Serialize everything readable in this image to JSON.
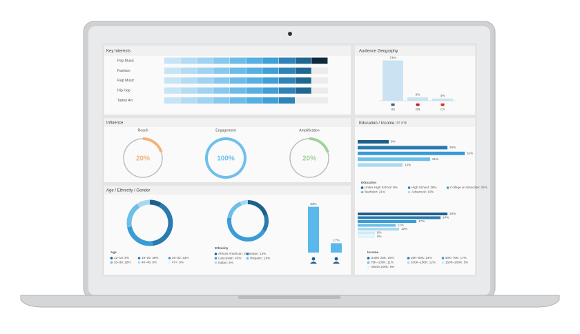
{
  "key_interests": {
    "title": "Key Interests",
    "categories": [
      "Pop Music",
      "Fashion",
      "Rap Music",
      "Hip Hop",
      "Tattoo Art"
    ],
    "values": [
      10,
      9,
      9,
      9,
      8
    ],
    "xlim": [
      0,
      10
    ],
    "colors": [
      "#c6e4f6",
      "#b3dcf4",
      "#9fd3f1",
      "#87c8ee",
      "#6bbbe9",
      "#55afe3",
      "#3f9fd6",
      "#2e84b8",
      "#1f6791",
      "#0f2a3c"
    ]
  },
  "audience_geography": {
    "title": "Audience Geography",
    "categories": [
      "US",
      "GB",
      "CA"
    ],
    "values": [
      73,
      6,
      4
    ],
    "value_labels": [
      "73%",
      "6%",
      "4%"
    ],
    "ylim": [
      0,
      75
    ],
    "color": "#c9e3f3"
  },
  "influence": {
    "title": "Influence",
    "categories": [
      "Reach",
      "Engagement",
      "Amplification"
    ],
    "values": [
      20,
      100,
      20
    ],
    "value_labels": [
      "20%",
      "100%",
      "20%"
    ],
    "colors": [
      "#f5b27a",
      "#6cc0ec",
      "#9fd39a"
    ],
    "ylim": [
      0,
      100
    ]
  },
  "education_income": {
    "title": "Education / Income",
    "subtitle": "US only",
    "xlim": [
      0,
      32
    ],
    "education": {
      "title": "Education",
      "values": [
        9,
        26,
        31,
        21,
        13
      ],
      "value_labels": [
        "9%",
        "26%",
        "31%",
        "21%",
        "13%"
      ],
      "legend": [
        "Under High School: 9%",
        "High School: 26%",
        "College or Associate: 31%",
        "Bachelor: 21%",
        "Advanced: 13%"
      ],
      "colors": [
        "#1f5f8b",
        "#2a7ab0",
        "#3a9bd5",
        "#6cbfe8",
        "#a8d8f0"
      ]
    },
    "income": {
      "title": "Income",
      "values": [
        26,
        24,
        17,
        11,
        12,
        5,
        5
      ],
      "value_labels": [
        "26%",
        "24%",
        "17%",
        "11%",
        "12%",
        "5%",
        "5%"
      ],
      "legend": [
        "Under 25K: 26%",
        "25K–50K: 24%",
        "50K–75K: 17%",
        "75K–100K: 11%",
        "100K–150K: 12%",
        "150K–200K: 5%",
        "Above 200K: 5%"
      ],
      "colors": [
        "#1f5f8b",
        "#2a7ab0",
        "#3a9bd5",
        "#6cbfe8",
        "#a8d8f0",
        "#cfe9f7",
        "#e4f3fb"
      ]
    }
  },
  "age_ethnicity_gender": {
    "title": "Age / Ethnicity / Gender",
    "age": {
      "title": "Age",
      "values": [
        8,
        38,
        23,
        18,
        9,
        0
      ],
      "legend": [
        "12–18: 8%",
        "19–25: 38%",
        "26–32: 23%",
        "33–39: 18%",
        "40–46: 9%",
        "47>: 0%"
      ],
      "colors": [
        "#1f5f8b",
        "#2a7ab0",
        "#3a9bd5",
        "#6cbfe8",
        "#a8d8f0",
        "#e4f3fb"
      ]
    },
    "ethnicity": {
      "title": "Ethnicity",
      "values": [
        20,
        13,
        43,
        16,
        6
      ],
      "legend": [
        "African American: 20%",
        "Asian: 13%",
        "Caucasian: 43%",
        "Hispanic: 16%",
        "Indian: 6%"
      ],
      "colors": [
        "#1f5f8b",
        "#2a7ab0",
        "#3a9bd5",
        "#6cbfe8",
        "#a8d8f0"
      ]
    },
    "gender": {
      "values": [
        83,
        17
      ],
      "value_labels": [
        "83%",
        "17%"
      ],
      "ylim": [
        0,
        85
      ],
      "color": "#5bb8ea"
    }
  }
}
